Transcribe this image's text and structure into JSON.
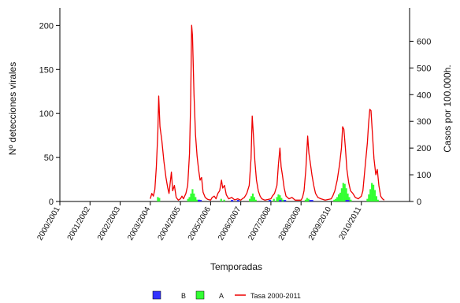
{
  "chart_data": {
    "type": "bar+line",
    "xlabel": "Temporadas",
    "ylabel_left": "Nº detecciones virales",
    "ylabel_right": "Casos por 100.000h.",
    "y_left_ticks": [
      0,
      50,
      100,
      150,
      200
    ],
    "y_left_range": [
      0,
      220
    ],
    "y_right_ticks": [
      0,
      100,
      200,
      300,
      400,
      500,
      600
    ],
    "y_right_range": [
      0,
      725
    ],
    "categories": [
      "2000/2001",
      "2001/2002",
      "2002/2003",
      "2003/2004",
      "2004/2005",
      "2005/2006",
      "2006/2007",
      "2007/2008",
      "2008/2009",
      "2009/2010",
      "2010/2011"
    ],
    "season_range": [
      0,
      11.6
    ],
    "legend": [
      {
        "label": "B",
        "color": "#3333ff"
      },
      {
        "label": "A",
        "color": "#33ff33"
      },
      {
        "label": "Tasa 2000-2011",
        "color": "#ee0000"
      }
    ],
    "series_line": {
      "name": "Tasa 2000-2011",
      "points": [
        [
          3.0,
          10
        ],
        [
          3.05,
          30
        ],
        [
          3.1,
          20
        ],
        [
          3.15,
          45
        ],
        [
          3.2,
          130
        ],
        [
          3.25,
          260
        ],
        [
          3.28,
          395
        ],
        [
          3.32,
          280
        ],
        [
          3.38,
          230
        ],
        [
          3.45,
          150
        ],
        [
          3.52,
          90
        ],
        [
          3.58,
          50
        ],
        [
          3.62,
          30
        ],
        [
          3.66,
          70
        ],
        [
          3.7,
          110
        ],
        [
          3.74,
          40
        ],
        [
          3.8,
          60
        ],
        [
          3.86,
          15
        ],
        [
          3.93,
          5
        ],
        [
          4.0,
          10
        ],
        [
          4.05,
          20
        ],
        [
          4.1,
          10
        ],
        [
          4.18,
          30
        ],
        [
          4.24,
          60
        ],
        [
          4.3,
          180
        ],
        [
          4.34,
          380
        ],
        [
          4.37,
          660
        ],
        [
          4.4,
          620
        ],
        [
          4.45,
          400
        ],
        [
          4.5,
          250
        ],
        [
          4.55,
          170
        ],
        [
          4.6,
          120
        ],
        [
          4.65,
          80
        ],
        [
          4.7,
          90
        ],
        [
          4.75,
          35
        ],
        [
          4.82,
          15
        ],
        [
          4.9,
          8
        ],
        [
          5.0,
          5
        ],
        [
          5.05,
          15
        ],
        [
          5.12,
          20
        ],
        [
          5.18,
          10
        ],
        [
          5.24,
          30
        ],
        [
          5.3,
          40
        ],
        [
          5.36,
          80
        ],
        [
          5.4,
          50
        ],
        [
          5.46,
          60
        ],
        [
          5.52,
          25
        ],
        [
          5.6,
          10
        ],
        [
          5.7,
          15
        ],
        [
          5.8,
          6
        ],
        [
          5.9,
          10
        ],
        [
          6.0,
          5
        ],
        [
          6.05,
          10
        ],
        [
          6.12,
          15
        ],
        [
          6.2,
          30
        ],
        [
          6.28,
          60
        ],
        [
          6.34,
          160
        ],
        [
          6.38,
          320
        ],
        [
          6.42,
          250
        ],
        [
          6.47,
          150
        ],
        [
          6.52,
          80
        ],
        [
          6.58,
          40
        ],
        [
          6.64,
          20
        ],
        [
          6.7,
          10
        ],
        [
          6.8,
          5
        ],
        [
          7.0,
          10
        ],
        [
          7.05,
          20
        ],
        [
          7.12,
          30
        ],
        [
          7.2,
          60
        ],
        [
          7.25,
          140
        ],
        [
          7.3,
          200
        ],
        [
          7.34,
          130
        ],
        [
          7.38,
          100
        ],
        [
          7.44,
          50
        ],
        [
          7.5,
          20
        ],
        [
          7.6,
          10
        ],
        [
          7.7,
          15
        ],
        [
          7.8,
          5
        ],
        [
          8.0,
          5
        ],
        [
          8.05,
          15
        ],
        [
          8.1,
          40
        ],
        [
          8.16,
          120
        ],
        [
          8.22,
          245
        ],
        [
          8.26,
          180
        ],
        [
          8.3,
          150
        ],
        [
          8.36,
          100
        ],
        [
          8.42,
          60
        ],
        [
          8.48,
          30
        ],
        [
          8.56,
          15
        ],
        [
          8.66,
          10
        ],
        [
          8.8,
          5
        ],
        [
          9.0,
          10
        ],
        [
          9.05,
          20
        ],
        [
          9.12,
          40
        ],
        [
          9.2,
          80
        ],
        [
          9.28,
          140
        ],
        [
          9.34,
          200
        ],
        [
          9.38,
          280
        ],
        [
          9.42,
          270
        ],
        [
          9.47,
          200
        ],
        [
          9.52,
          120
        ],
        [
          9.58,
          70
        ],
        [
          9.64,
          40
        ],
        [
          9.72,
          30
        ],
        [
          9.8,
          15
        ],
        [
          9.9,
          10
        ],
        [
          10.0,
          20
        ],
        [
          10.05,
          40
        ],
        [
          10.1,
          100
        ],
        [
          10.15,
          160
        ],
        [
          10.2,
          220
        ],
        [
          10.24,
          290
        ],
        [
          10.28,
          345
        ],
        [
          10.32,
          340
        ],
        [
          10.37,
          250
        ],
        [
          10.42,
          160
        ],
        [
          10.48,
          100
        ],
        [
          10.53,
          120
        ],
        [
          10.58,
          60
        ],
        [
          10.64,
          20
        ],
        [
          10.7,
          10
        ],
        [
          10.76,
          5
        ]
      ]
    },
    "series_bars_A": {
      "name": "A",
      "points": [
        [
          3.25,
          5
        ],
        [
          3.3,
          4
        ],
        [
          4.25,
          3
        ],
        [
          4.3,
          5
        ],
        [
          4.35,
          9
        ],
        [
          4.4,
          14
        ],
        [
          4.45,
          9
        ],
        [
          4.5,
          5
        ],
        [
          4.55,
          2
        ],
        [
          5.35,
          3
        ],
        [
          5.45,
          2
        ],
        [
          6.3,
          3
        ],
        [
          6.35,
          6
        ],
        [
          6.4,
          9
        ],
        [
          6.45,
          5
        ],
        [
          6.5,
          2
        ],
        [
          7.1,
          3
        ],
        [
          7.2,
          5
        ],
        [
          7.25,
          8
        ],
        [
          7.3,
          7
        ],
        [
          7.35,
          4
        ],
        [
          7.4,
          2
        ],
        [
          8.15,
          2
        ],
        [
          8.2,
          4
        ],
        [
          8.25,
          3
        ],
        [
          9.1,
          2
        ],
        [
          9.15,
          3
        ],
        [
          9.2,
          5
        ],
        [
          9.25,
          8
        ],
        [
          9.3,
          10
        ],
        [
          9.35,
          15
        ],
        [
          9.4,
          21
        ],
        [
          9.45,
          20
        ],
        [
          9.5,
          15
        ],
        [
          9.55,
          9
        ],
        [
          9.6,
          5
        ],
        [
          9.65,
          2
        ],
        [
          10.2,
          3
        ],
        [
          10.25,
          8
        ],
        [
          10.3,
          14
        ],
        [
          10.35,
          21
        ],
        [
          10.4,
          19
        ],
        [
          10.45,
          13
        ],
        [
          10.5,
          6
        ],
        [
          10.55,
          2
        ]
      ]
    },
    "series_bars_B": {
      "name": "B",
      "points": [
        [
          4.6,
          2
        ],
        [
          4.65,
          1
        ],
        [
          5.7,
          1
        ],
        [
          5.9,
          1
        ],
        [
          6.95,
          1
        ],
        [
          7.3,
          1
        ],
        [
          7.45,
          1
        ],
        [
          8.3,
          1
        ],
        [
          8.35,
          1
        ],
        [
          9.5,
          1
        ],
        [
          9.55,
          1
        ]
      ]
    }
  }
}
